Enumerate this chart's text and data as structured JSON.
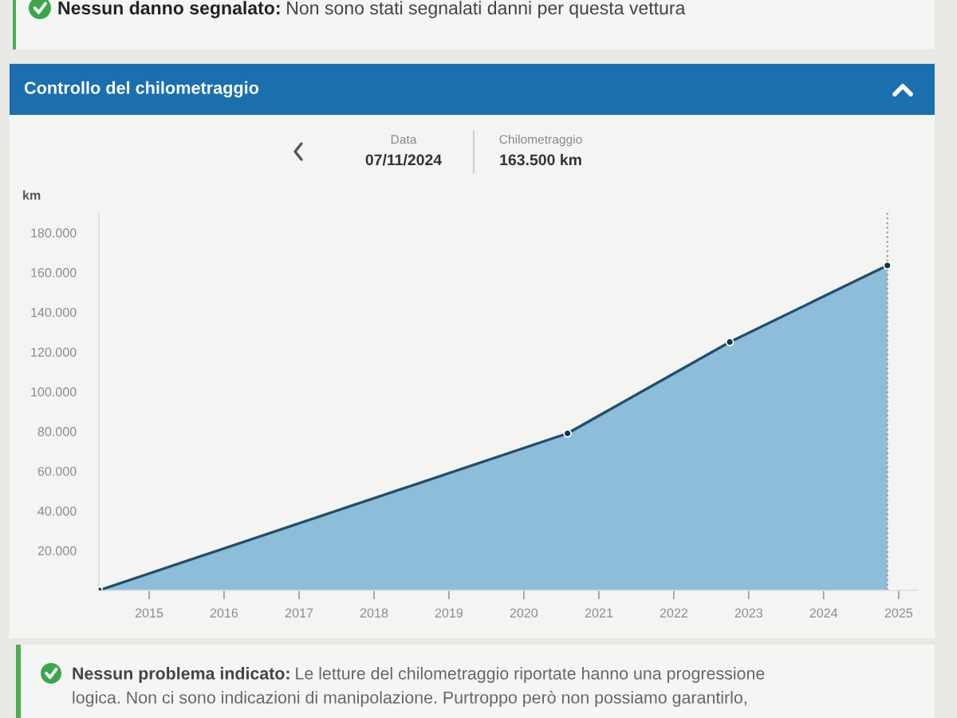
{
  "chart_data": {
    "type": "area",
    "title": "Controllo del chilometraggio",
    "ylabel": "km",
    "x": [
      "2014-05",
      "2020-08",
      "2022-10",
      "2024-11-07"
    ],
    "series": [
      {
        "color": "#3a8fc6",
        "values": [
          0,
          79000,
          125000,
          163500
        ]
      }
    ],
    "xlim": [
      "2014-05",
      "2025-04"
    ],
    "xticks": [
      "2015",
      "2016",
      "2017",
      "2018",
      "2019",
      "2020",
      "2021",
      "2022",
      "2023",
      "2024",
      "2025"
    ],
    "ylim": [
      0,
      190000
    ],
    "yticks": [
      {
        "value": 20000,
        "label": "20.000"
      },
      {
        "value": 40000,
        "label": "40.000"
      },
      {
        "value": 60000,
        "label": "60.000"
      },
      {
        "value": 80000,
        "label": "80.000"
      },
      {
        "value": 100000,
        "label": "100.000"
      },
      {
        "value": 120000,
        "label": "120.000"
      },
      {
        "value": 140000,
        "label": "140.000"
      },
      {
        "value": 160000,
        "label": "160.000"
      },
      {
        "value": 180000,
        "label": "180.000"
      }
    ],
    "marker": "circle",
    "line_style": "solid",
    "grid": false,
    "ref_lines": [
      {
        "axis": "x",
        "value": "2024-11-07",
        "color": "#9a9a9a",
        "line_style": "dotted"
      }
    ],
    "annotations": [
      "Nessun danno segnalato:",
      "Non sono stati segnalati danni per questa vettura",
      "Data",
      "07/11/2024",
      "Chilometraggio",
      "163.500 km",
      "Nessun problema indicato:",
      "Le letture del chilometraggio riportate hanno una progressione\nlogica. Non ci sono indicazioni di manipolazione. Purtroppo però non possiamo garantirlo,"
    ]
  }
}
